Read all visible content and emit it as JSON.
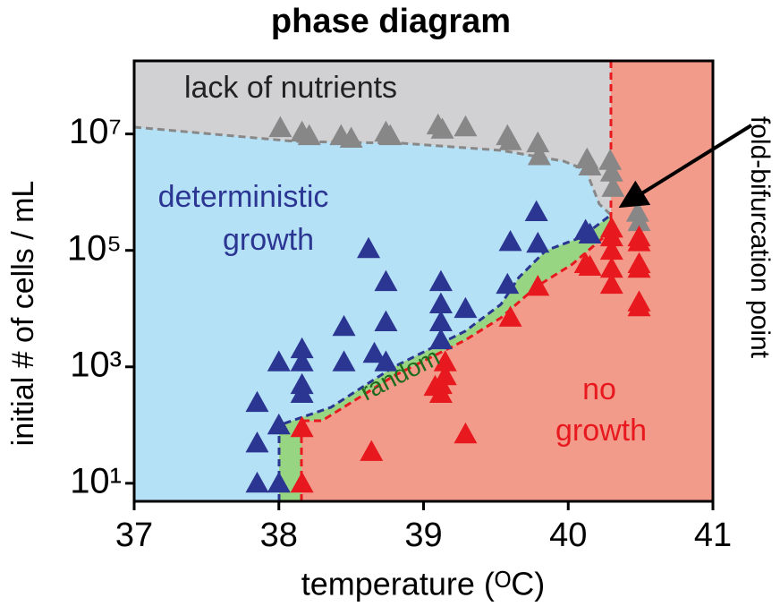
{
  "chart_data": {
    "type": "scatter",
    "title": "phase diagram",
    "xlabel": "temperature (ᴼC)",
    "ylabel": "initial # of cells / mL",
    "xlim": [
      37,
      41
    ],
    "xticks": [
      37,
      38,
      39,
      40,
      41
    ],
    "ylim": [
      4.9,
      180000000
    ],
    "yscale": "log",
    "yticks": [
      {
        "value": 10,
        "label": "10¹"
      },
      {
        "value": 1000,
        "label": "10³"
      },
      {
        "value": 100000,
        "label": "10⁵"
      },
      {
        "value": 10000000,
        "label": "10⁷"
      }
    ],
    "annotations": [
      [
        "lack of nutrients"
      ],
      [
        "deterministic",
        "growth"
      ],
      [
        "random"
      ],
      [
        "no",
        "growth"
      ],
      [
        "fold-bifurcation point"
      ]
    ],
    "series": [
      {
        "color": "#878787",
        "x": [
          38.01,
          38.16,
          38.21,
          38.43,
          38.5,
          38.74,
          38.77,
          39.1,
          39.13,
          39.29,
          39.58,
          39.6,
          39.79,
          39.8,
          40.13,
          40.15,
          40.29,
          40.3,
          40.31,
          40.48,
          40.49
        ],
        "values": [
          12800000,
          10700000,
          9300000,
          9300000,
          8400000,
          10700000,
          9300000,
          14200000,
          12000000,
          13200000,
          9300000,
          7600000,
          7000000,
          4200000,
          3700000,
          2800000,
          3500000,
          2200000,
          1200000,
          450000,
          310000
        ]
      },
      {
        "color": "#2b3592",
        "x": [
          37.85,
          37.85,
          37.85,
          38.0,
          38.0,
          38.0,
          38.16,
          38.16,
          38.16,
          38.16,
          38.45,
          38.45,
          38.62,
          38.74,
          38.74,
          38.74,
          38.66,
          39.12,
          39.12,
          39.12,
          39.12,
          39.29,
          39.6,
          39.58,
          39.78,
          39.79,
          40.12,
          40.15
        ],
        "values": [
          243,
          49,
          10,
          100,
          10,
          1210,
          2030,
          1210,
          493,
          348,
          4900,
          1210,
          107000,
          29000,
          5900,
          1210,
          1700,
          29000,
          12000,
          5900,
          2900,
          10000,
          141000,
          26000,
          460000,
          132000,
          220000,
          190000
        ]
      },
      {
        "color": "#e8191e",
        "x": [
          38.16,
          38.16,
          38.64,
          39.12,
          39.08,
          39.12,
          39.15,
          39.15,
          39.29,
          39.6,
          39.79,
          40.12,
          40.15,
          40.3,
          40.3,
          40.3,
          40.3,
          40.3,
          40.49,
          40.49,
          40.49,
          40.49,
          40.49,
          40.49
        ],
        "values": [
          90,
          10,
          35,
          493,
          460,
          348,
          700,
          1210,
          70,
          7100,
          24000,
          59000,
          53000,
          240000,
          170000,
          100000,
          49000,
          26000,
          170000,
          140000,
          59000,
          49000,
          13000,
          10700
        ]
      }
    ]
  }
}
